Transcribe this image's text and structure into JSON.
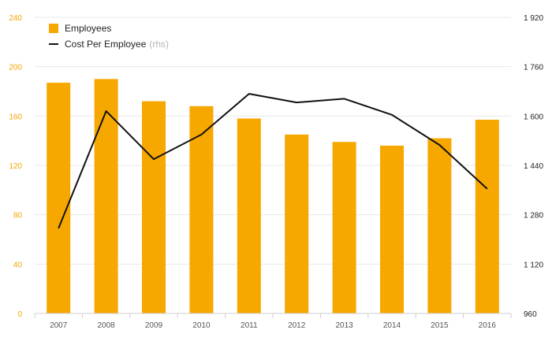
{
  "chart_data": {
    "type": "bar",
    "categories": [
      "2007",
      "2008",
      "2009",
      "2010",
      "2011",
      "2012",
      "2013",
      "2014",
      "2015",
      "2016"
    ],
    "series": [
      {
        "name": "Employees",
        "type": "bar",
        "axis": "left",
        "color": "#f7a800",
        "values": [
          187,
          190,
          172,
          168,
          158,
          145,
          139,
          136,
          142,
          157
        ]
      },
      {
        "name": "Cost Per Employee",
        "type": "line",
        "axis": "right",
        "color": "#111111",
        "values": [
          1236,
          1616,
          1460,
          1540,
          1672,
          1644,
          1656,
          1604,
          1506,
          1364
        ]
      }
    ],
    "ylim_left": [
      0,
      240
    ],
    "yticks_left": [
      "0",
      "40",
      "80",
      "120",
      "160",
      "200",
      "240"
    ],
    "ylim_right": [
      960,
      1920
    ],
    "yticks_right": [
      "960",
      "1 120",
      "1 280",
      "1 440",
      "1 600",
      "1 760",
      "1 920"
    ],
    "legend": {
      "bar_label": "Employees",
      "line_label": "Cost Per Employee",
      "line_suffix": "(rhs)",
      "position": "top-left"
    },
    "grid": true,
    "colors": {
      "bar": "#f7a800",
      "line": "#111111",
      "left_axis": "#f0a500",
      "grid": "#e8e8e8"
    }
  }
}
